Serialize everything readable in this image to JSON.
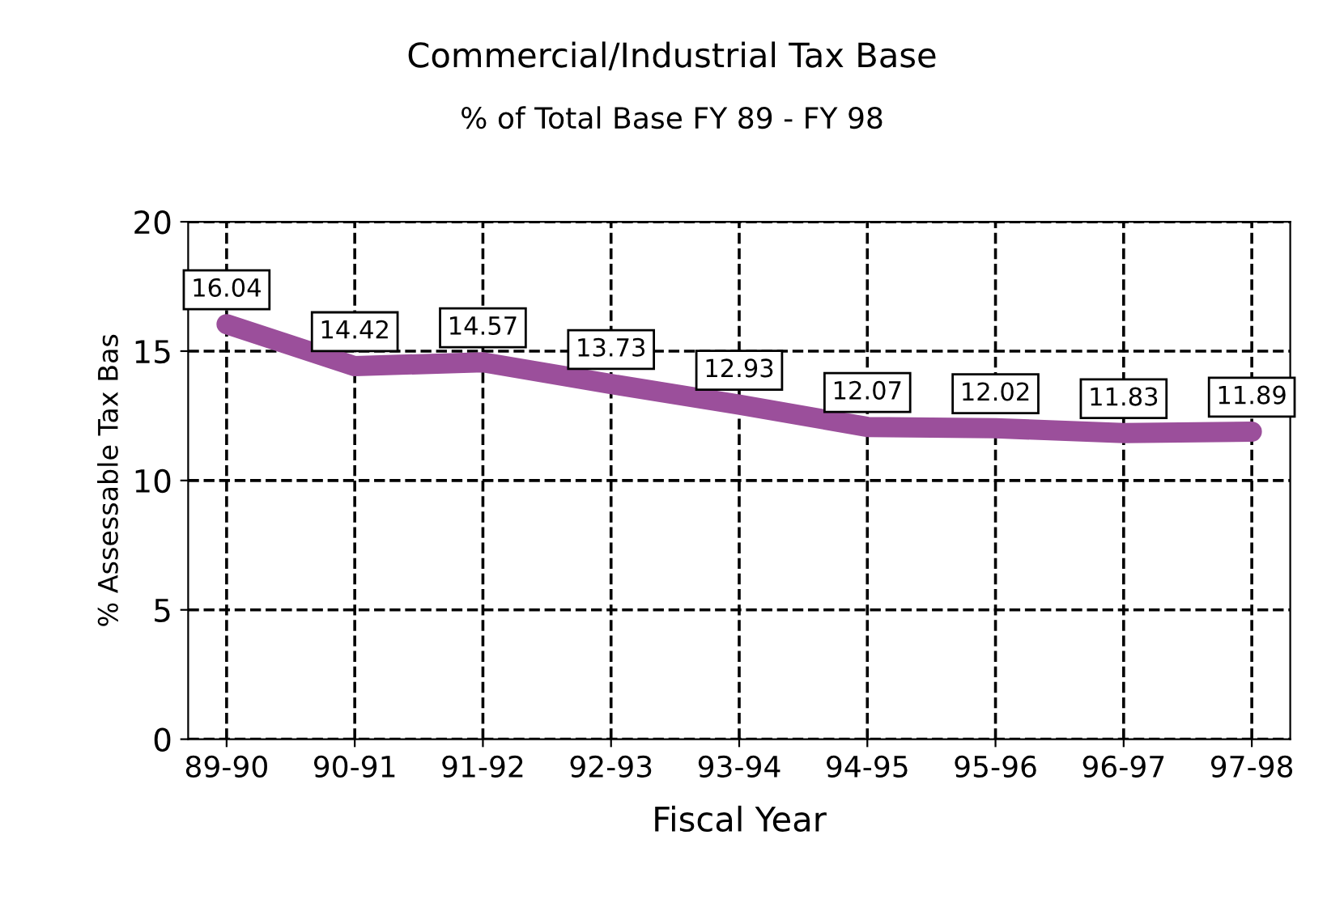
{
  "chart_data": {
    "type": "line",
    "title": "Commercial/Industrial Tax Base",
    "subtitle": "% of Total Base FY 89 - FY 98",
    "xlabel": "Fiscal Year",
    "ylabel": "% Assessable Tax Bas",
    "categories": [
      "89-90",
      "90-91",
      "91-92",
      "92-93",
      "93-94",
      "94-95",
      "95-96",
      "96-97",
      "97-98"
    ],
    "series": [
      {
        "color": "#9b4f9b",
        "values": [
          16.04,
          14.42,
          14.57,
          13.73,
          12.93,
          12.07,
          12.02,
          11.83,
          11.89
        ]
      }
    ],
    "ylim": [
      0,
      20
    ],
    "yticks": [
      0,
      5,
      10,
      15,
      20
    ],
    "grid": true,
    "line_style": "solid",
    "data_labels": true
  }
}
